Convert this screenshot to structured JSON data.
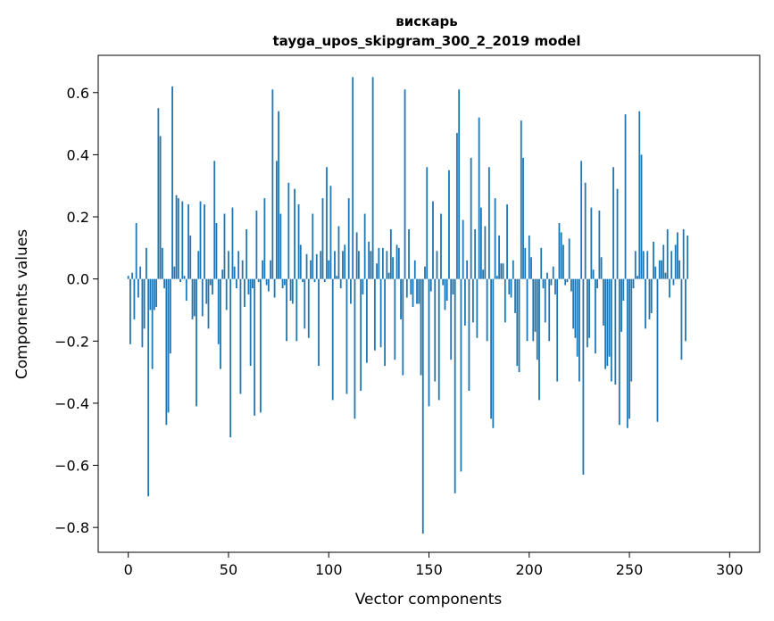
{
  "chart_data": {
    "type": "bar",
    "title_line1": "вискарь",
    "title_line2": "tayga_upos_skipgram_300_2_2019 model",
    "xlabel": "Vector components",
    "ylabel": "Components values",
    "xlim": [
      -15,
      315
    ],
    "ylim": [
      -0.88,
      0.72
    ],
    "xticks": [
      0,
      50,
      100,
      150,
      200,
      250,
      300
    ],
    "yticks": [
      -0.8,
      -0.6,
      -0.4,
      -0.2,
      0.0,
      0.2,
      0.4,
      0.6
    ],
    "ytick_labels": [
      "−0.8",
      "−0.6",
      "−0.4",
      "−0.2",
      "0.0",
      "0.2",
      "0.4",
      "0.6"
    ],
    "grid": false,
    "bar_color": "#1f77b4",
    "values": [
      0.01,
      -0.21,
      0.02,
      -0.13,
      0.18,
      -0.06,
      0.04,
      -0.22,
      -0.16,
      0.1,
      -0.7,
      -0.1,
      -0.29,
      -0.1,
      -0.09,
      0.55,
      0.46,
      0.1,
      -0.03,
      -0.47,
      -0.43,
      -0.24,
      0.62,
      0.04,
      0.27,
      0.26,
      -0.01,
      0.25,
      0.01,
      -0.07,
      0.24,
      0.14,
      -0.13,
      -0.12,
      -0.41,
      0.09,
      0.25,
      -0.12,
      0.24,
      -0.08,
      -0.16,
      -0.02,
      -0.05,
      0.38,
      0.18,
      -0.21,
      -0.29,
      0.03,
      0.21,
      -0.1,
      0.09,
      -0.51,
      0.23,
      0.04,
      -0.03,
      0.09,
      -0.37,
      0.06,
      -0.09,
      0.16,
      -0.05,
      -0.28,
      -0.03,
      -0.44,
      0.22,
      -0.01,
      -0.43,
      0.06,
      0.26,
      -0.02,
      -0.04,
      0.06,
      0.61,
      -0.06,
      0.38,
      0.54,
      0.21,
      -0.03,
      -0.02,
      -0.2,
      0.31,
      -0.07,
      -0.08,
      0.29,
      -0.2,
      0.24,
      0.11,
      -0.01,
      -0.16,
      0.08,
      -0.19,
      0.06,
      0.21,
      -0.01,
      0.08,
      -0.28,
      0.09,
      0.26,
      -0.01,
      0.36,
      0.06,
      0.3,
      -0.39,
      0.09,
      0.01,
      0.17,
      -0.03,
      0.09,
      0.11,
      -0.37,
      0.26,
      -0.08,
      0.65,
      -0.45,
      0.15,
      0.09,
      -0.36,
      -0.05,
      0.21,
      -0.27,
      0.12,
      0.09,
      0.65,
      -0.23,
      0.05,
      0.1,
      -0.22,
      0.1,
      -0.28,
      0.09,
      0.02,
      0.16,
      0.07,
      -0.26,
      0.11,
      0.1,
      -0.13,
      -0.31,
      0.61,
      -0.06,
      0.16,
      -0.05,
      -0.09,
      0.06,
      -0.08,
      -0.08,
      -0.31,
      -0.82,
      0.04,
      0.36,
      -0.41,
      -0.04,
      0.25,
      -0.33,
      0.09,
      -0.39,
      0.21,
      -0.02,
      -0.1,
      -0.07,
      0.35,
      -0.26,
      -0.05,
      -0.69,
      0.47,
      0.61,
      -0.62,
      0.19,
      -0.15,
      0.06,
      -0.36,
      0.39,
      -0.14,
      0.16,
      -0.19,
      0.52,
      0.23,
      0.03,
      0.17,
      -0.2,
      0.36,
      -0.45,
      -0.48,
      0.26,
      0.01,
      0.14,
      0.05,
      0.05,
      -0.14,
      0.24,
      -0.05,
      -0.06,
      0.06,
      -0.11,
      -0.28,
      -0.3,
      0.51,
      0.39,
      0.1,
      -0.2,
      0.14,
      0.07,
      -0.2,
      -0.17,
      -0.26,
      -0.39,
      0.1,
      -0.03,
      -0.14,
      0.02,
      -0.2,
      -0.02,
      0.04,
      -0.05,
      -0.33,
      0.18,
      0.15,
      0.11,
      -0.02,
      -0.01,
      0.13,
      -0.04,
      -0.16,
      -0.19,
      -0.25,
      -0.33,
      0.38,
      -0.63,
      0.31,
      -0.22,
      -0.19,
      0.23,
      0.03,
      -0.24,
      -0.03,
      0.22,
      0.07,
      -0.15,
      -0.29,
      -0.28,
      -0.25,
      -0.33,
      0.36,
      -0.34,
      0.29,
      -0.47,
      -0.17,
      -0.07,
      0.53,
      -0.48,
      -0.45,
      -0.33,
      -0.03,
      0.09,
      0.01,
      0.54,
      0.4,
      0.09,
      -0.16,
      0.09,
      -0.13,
      -0.11,
      0.12,
      0.04,
      -0.46,
      0.06,
      0.06,
      0.11,
      0.02,
      0.16,
      -0.06,
      0.09,
      -0.02,
      0.11,
      0.15,
      0.06,
      -0.26,
      0.16,
      -0.2,
      0.14
    ]
  }
}
